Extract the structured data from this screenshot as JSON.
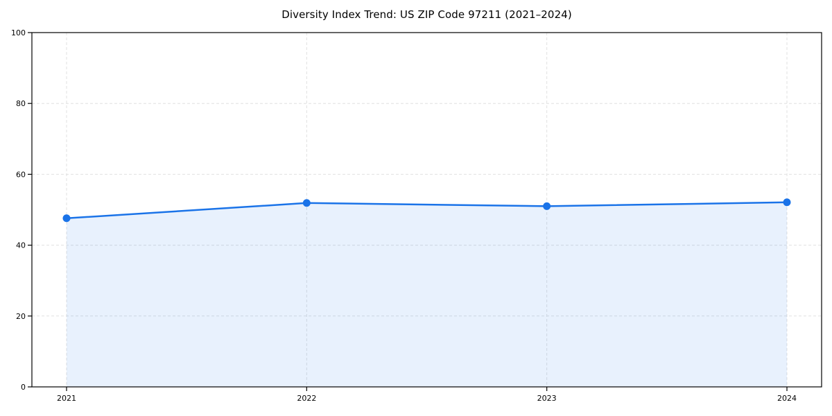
{
  "chart_data": {
    "type": "area",
    "title": "Diversity Index Trend: US ZIP Code 97211 (2021–2024)",
    "x": [
      "2021",
      "2022",
      "2023",
      "2024"
    ],
    "series": [
      {
        "name": "Diversity Index",
        "values": [
          47.6,
          51.9,
          51.0,
          52.1
        ]
      }
    ],
    "xlabel": "",
    "ylabel": "",
    "ylim": [
      0,
      100
    ],
    "yticks": [
      0,
      20,
      40,
      60,
      80,
      100
    ],
    "grid": true,
    "grid_style": "dashed",
    "legend_position": "none",
    "colors": {
      "line": "#1a73e8",
      "marker": "#1a73e8",
      "fill": "rgba(26,115,232,0.10)",
      "grid": "#e0e0e0",
      "axis": "#000000",
      "tick_text": "#000000",
      "background": "#ffffff"
    }
  }
}
